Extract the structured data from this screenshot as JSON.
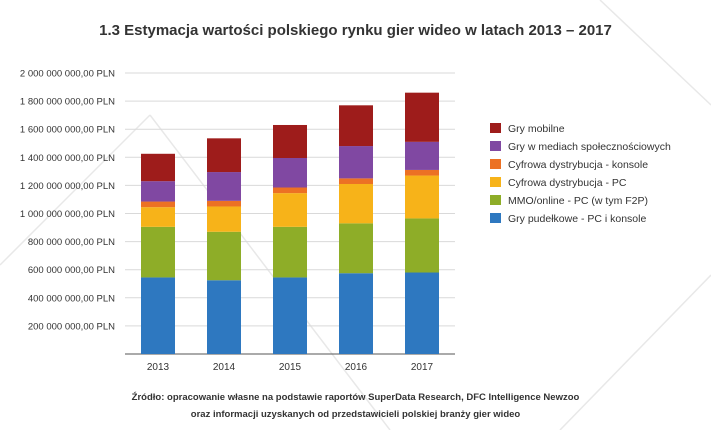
{
  "chart_data": {
    "type": "bar",
    "stacked": true,
    "title": "1.3 Estymacja wartości polskiego rynku gier wideo w latach 2013 – 2017",
    "categories": [
      "2013",
      "2014",
      "2015",
      "2016",
      "2017"
    ],
    "yticks": [
      "2 000 000 000,00 PLN",
      "1 800 000 000,00 PLN",
      "1 600 000 000,00 PLN",
      "1 400 000 000,00 PLN",
      "1 200 000 000,00 PLN",
      "1 000 000 000,00 PLN",
      "800 000 000,00 PLN",
      "600 000 000,00 PLN",
      "400 000 000,00 PLN",
      "200 000 000,00 PLN"
    ],
    "ylim": [
      0,
      2000000000
    ],
    "grid": true,
    "legend_position": "right",
    "series": [
      {
        "name": "Gry pudełkowe - PC i konsole",
        "color": "#2e78c0",
        "values": [
          545000000,
          525000000,
          545000000,
          575000000,
          580000000
        ]
      },
      {
        "name": "MMO/online - PC (w tym F2P)",
        "color": "#8ead28",
        "values": [
          360000000,
          345000000,
          360000000,
          355000000,
          385000000
        ]
      },
      {
        "name": "Cyfrowa dystrybucja - PC",
        "color": "#f7b319",
        "values": [
          140000000,
          180000000,
          240000000,
          280000000,
          305000000
        ]
      },
      {
        "name": "Cyfrowa dystrybucja - konsole",
        "color": "#ec7124",
        "values": [
          40000000,
          40000000,
          40000000,
          40000000,
          40000000
        ]
      },
      {
        "name": "Gry w mediach społecznościowych",
        "color": "#8048a2",
        "values": [
          145000000,
          205000000,
          210000000,
          230000000,
          200000000
        ]
      },
      {
        "name": "Gry mobilne",
        "color": "#9e1c1b",
        "values": [
          195000000,
          240000000,
          235000000,
          290000000,
          350000000
        ]
      }
    ],
    "legend_order": [
      5,
      4,
      3,
      2,
      1,
      0
    ]
  },
  "source": {
    "line1": "Źródło: opracowanie własne na podstawie raportów SuperData Research, DFC Intelligence Newzoo",
    "line2": "oraz informacji uzyskanych od przedstawicieli polskiej branży gier wideo"
  },
  "colors": {
    "gridline": "#d9d9d9",
    "axis": "#555555",
    "watermark": "#e8e8e8"
  }
}
